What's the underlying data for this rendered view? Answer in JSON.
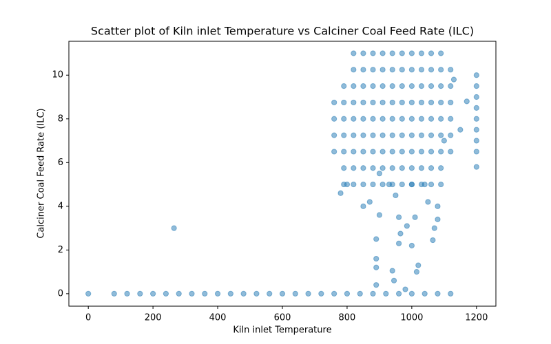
{
  "chart_data": {
    "type": "scatter",
    "title": "Scatter plot of Kiln inlet Temperature vs Calciner Coal Feed Rate (ILC)",
    "x_label": "Kiln inlet Temperature",
    "y_label": "Calciner Coal Feed Rate (ILC)",
    "xlim": [
      -60,
      1260
    ],
    "ylim": [
      -0.57,
      11.55
    ],
    "xticks": [
      0,
      200,
      400,
      600,
      800,
      1000,
      1200
    ],
    "yticks": [
      0,
      2,
      4,
      6,
      8,
      10
    ],
    "grid": false,
    "alpha": 0.5,
    "series": [
      {
        "color": "#1f77b4",
        "x": [
          0,
          80,
          120,
          160,
          200,
          240,
          280,
          320,
          360,
          400,
          440,
          480,
          520,
          560,
          600,
          640,
          680,
          720,
          760,
          800,
          840,
          880,
          920,
          960,
          1000,
          1040,
          1080,
          1120,
          265,
          890,
          890,
          890,
          940,
          945,
          1020,
          1015,
          960,
          965,
          985,
          1000,
          1065,
          960,
          1010,
          1070,
          1080,
          890,
          980,
          780,
          800,
          850,
          870,
          900,
          930,
          950,
          1000,
          1040,
          1080,
          1050,
          900,
          1100,
          1150,
          1170,
          1130,
          760,
          760,
          760,
          760,
          790,
          790,
          790,
          790,
          790,
          790,
          790,
          820,
          820,
          820,
          820,
          820,
          820,
          820,
          820,
          820,
          850,
          850,
          850,
          850,
          850,
          850,
          850,
          850,
          850,
          880,
          880,
          880,
          880,
          880,
          880,
          880,
          880,
          880,
          910,
          910,
          910,
          910,
          910,
          910,
          910,
          910,
          910,
          940,
          940,
          940,
          940,
          940,
          940,
          940,
          940,
          940,
          970,
          970,
          970,
          970,
          970,
          970,
          970,
          970,
          970,
          1000,
          1000,
          1000,
          1000,
          1000,
          1000,
          1000,
          1000,
          1000,
          1030,
          1030,
          1030,
          1030,
          1030,
          1030,
          1030,
          1030,
          1030,
          1060,
          1060,
          1060,
          1060,
          1060,
          1060,
          1060,
          1060,
          1060,
          1090,
          1090,
          1090,
          1090,
          1090,
          1090,
          1090,
          1090,
          1090,
          1120,
          1120,
          1120,
          1120,
          1120,
          1120,
          1200,
          1200,
          1200,
          1200,
          1200,
          1200,
          1200,
          1200,
          1200
        ],
        "y": [
          0,
          0,
          0,
          0,
          0,
          0,
          0,
          0,
          0,
          0,
          0,
          0,
          0,
          0,
          0,
          0,
          0,
          0,
          0,
          0,
          0,
          0,
          0,
          0,
          0,
          0,
          0,
          0,
          3,
          2.5,
          1.6,
          1.2,
          1.05,
          0.6,
          1.3,
          1,
          2.3,
          2.75,
          3.1,
          2.2,
          2.45,
          3.5,
          3.5,
          3,
          3.4,
          0.4,
          0.2,
          4.6,
          5,
          4,
          4.2,
          5.5,
          5,
          4.5,
          5,
          5,
          4,
          4.2,
          3.6,
          7,
          7.5,
          8.8,
          9.8,
          6.5,
          7.25,
          8,
          8.75,
          5,
          5.75,
          6.5,
          7.25,
          8,
          8.75,
          9.5,
          5,
          5.75,
          6.5,
          7.25,
          8,
          8.75,
          9.5,
          10.25,
          11,
          5,
          5.75,
          6.5,
          7.25,
          8,
          8.75,
          9.5,
          10.25,
          11,
          5,
          5.75,
          6.5,
          7.25,
          8,
          8.75,
          9.5,
          10.25,
          11,
          5,
          5.75,
          6.5,
          7.25,
          8,
          8.75,
          9.5,
          10.25,
          11,
          5,
          5.75,
          6.5,
          7.25,
          8,
          8.75,
          9.5,
          10.25,
          11,
          5,
          5.75,
          6.5,
          7.25,
          8,
          8.75,
          9.5,
          10.25,
          11,
          5,
          5.75,
          6.5,
          7.25,
          8,
          8.75,
          9.5,
          10.25,
          11,
          5,
          5.75,
          6.5,
          7.25,
          8,
          8.75,
          9.5,
          10.25,
          11,
          5,
          5.75,
          6.5,
          7.25,
          8,
          8.75,
          9.5,
          10.25,
          11,
          5,
          5.75,
          6.5,
          7.25,
          8,
          8.75,
          9.5,
          10.25,
          11,
          6.5,
          7.25,
          8,
          8.75,
          9.5,
          10.25,
          5.8,
          6.5,
          7,
          7.5,
          8,
          8.5,
          9,
          9.5,
          10
        ]
      }
    ]
  }
}
